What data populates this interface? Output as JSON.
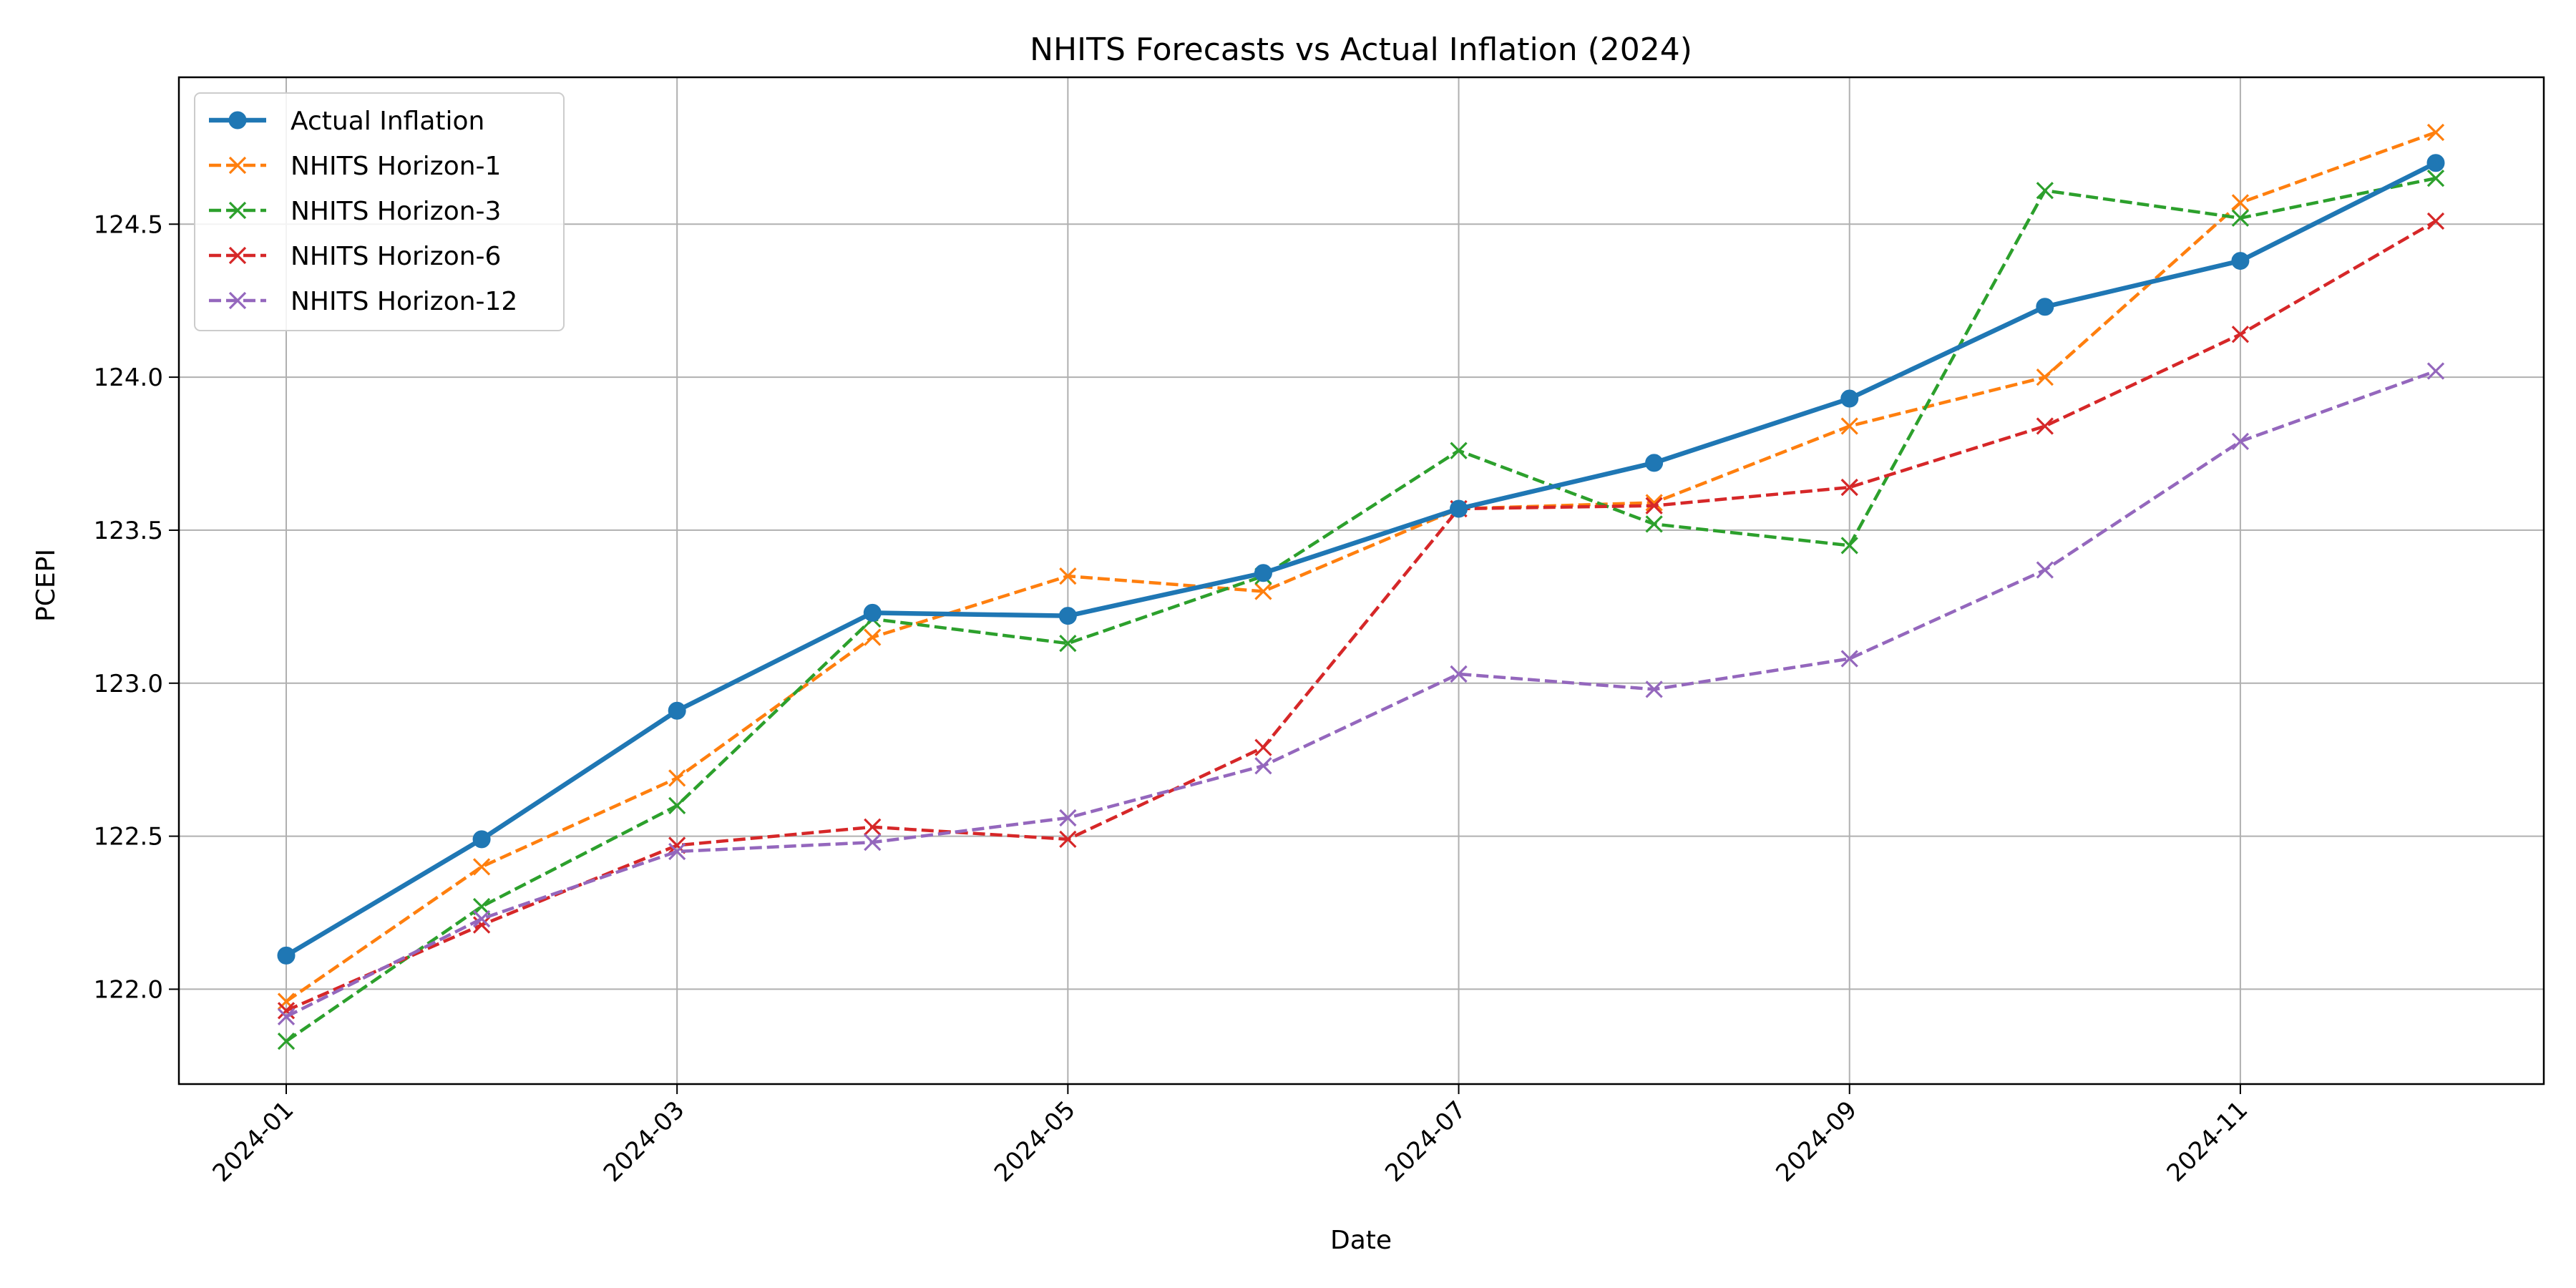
{
  "chart_data": {
    "type": "line",
    "title": "NHITS Forecasts vs Actual Inflation (2024)",
    "xlabel": "Date",
    "ylabel": "PCEPI",
    "x": [
      "2024-01",
      "2024-02",
      "2024-03",
      "2024-04",
      "2024-05",
      "2024-06",
      "2024-07",
      "2024-08",
      "2024-09",
      "2024-10",
      "2024-11",
      "2024-12"
    ],
    "xticks": [
      "2024-01",
      "2024-03",
      "2024-05",
      "2024-07",
      "2024-09",
      "2024-11"
    ],
    "yticks": [
      "122.0",
      "122.5",
      "123.0",
      "123.5",
      "124.0",
      "124.5"
    ],
    "ylim": [
      121.69,
      124.98
    ],
    "grid": true,
    "legend_position": "upper-left",
    "series": [
      {
        "name": "Actual Inflation",
        "color": "#1f77b4",
        "style": "solid",
        "marker": "circle",
        "values": [
          122.11,
          122.49,
          122.91,
          123.23,
          123.22,
          123.36,
          123.57,
          123.72,
          123.93,
          124.23,
          124.38,
          124.7
        ]
      },
      {
        "name": "NHITS Horizon-1",
        "color": "#ff7f0e",
        "style": "dashed",
        "marker": "x",
        "values": [
          121.96,
          122.4,
          122.69,
          123.15,
          123.35,
          123.3,
          123.57,
          123.59,
          123.84,
          124.0,
          124.57,
          124.8
        ]
      },
      {
        "name": "NHITS Horizon-3",
        "color": "#2ca02c",
        "style": "dashed",
        "marker": "x",
        "values": [
          121.83,
          122.27,
          122.6,
          123.21,
          123.13,
          123.35,
          123.76,
          123.52,
          123.45,
          124.61,
          124.52,
          124.65
        ]
      },
      {
        "name": "NHITS Horizon-6",
        "color": "#d62728",
        "style": "dashed",
        "marker": "x",
        "values": [
          121.93,
          122.21,
          122.47,
          122.53,
          122.49,
          122.79,
          123.57,
          123.58,
          123.64,
          123.84,
          124.14,
          124.51
        ]
      },
      {
        "name": "NHITS Horizon-12",
        "color": "#9467bd",
        "style": "dashed",
        "marker": "x",
        "values": [
          121.91,
          122.23,
          122.45,
          122.48,
          122.56,
          122.73,
          123.03,
          122.98,
          123.08,
          123.37,
          123.79,
          124.02
        ]
      }
    ]
  }
}
